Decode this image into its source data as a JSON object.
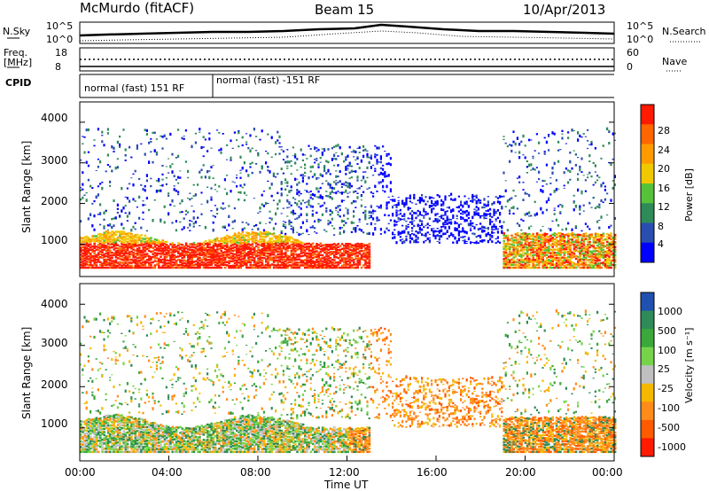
{
  "header": {
    "station": "McMurdo (fitACF)",
    "beam": "Beam 15",
    "date": "10/Apr/2013"
  },
  "strip_panels": {
    "nsky_label": "N.Sky",
    "nsearch_label": "N.Search",
    "noise_ticks": [
      "10^5",
      "10^0"
    ],
    "freq_label_1": "Freq.",
    "freq_label_2": "[MHz]",
    "freq_ticks": [
      "18",
      "8"
    ],
    "nave_label": "Nave",
    "nave_ticks": [
      "60",
      "0"
    ],
    "cpid_label": "CPID",
    "cpid_segments": [
      "normal (fast) 151 RF",
      "normal (fast) -151 RF"
    ]
  },
  "chart_data": [
    {
      "type": "heatmap",
      "title": "",
      "ylabel": "Slant Range [km]",
      "xlabel": "",
      "ylim": [
        200,
        4500
      ],
      "yticks": [
        "1000",
        "2000",
        "3000",
        "4000"
      ],
      "colorbar": {
        "label": "Power [dB]",
        "ticks": [
          "4",
          "8",
          "12",
          "16",
          "20",
          "24",
          "28"
        ],
        "colors": [
          "#0000ff",
          "#2a4db0",
          "#2e8b57",
          "#56c23a",
          "#f0c800",
          "#ff9b00",
          "#ff6600",
          "#ff1a00"
        ]
      }
    },
    {
      "type": "heatmap",
      "title": "",
      "ylabel": "Slant Range [km]",
      "xlabel": "Time UT",
      "ylim": [
        200,
        4500
      ],
      "yticks": [
        "1000",
        "2000",
        "3000",
        "4000"
      ],
      "xticks": [
        "00:00",
        "04:00",
        "08:00",
        "12:00",
        "16:00",
        "20:00",
        "00:00"
      ],
      "colorbar": {
        "label": "Velocity [m s⁻¹]",
        "ticks": [
          "1000",
          "500",
          "100",
          "25",
          "-25",
          "-100",
          "-500",
          "-1000"
        ],
        "colors": [
          "#2050b0",
          "#2e8b57",
          "#3aa83a",
          "#77d44a",
          "#c0c0c0",
          "#f5b800",
          "#ff8c1a",
          "#ff5a00",
          "#ff1a00"
        ]
      }
    }
  ]
}
